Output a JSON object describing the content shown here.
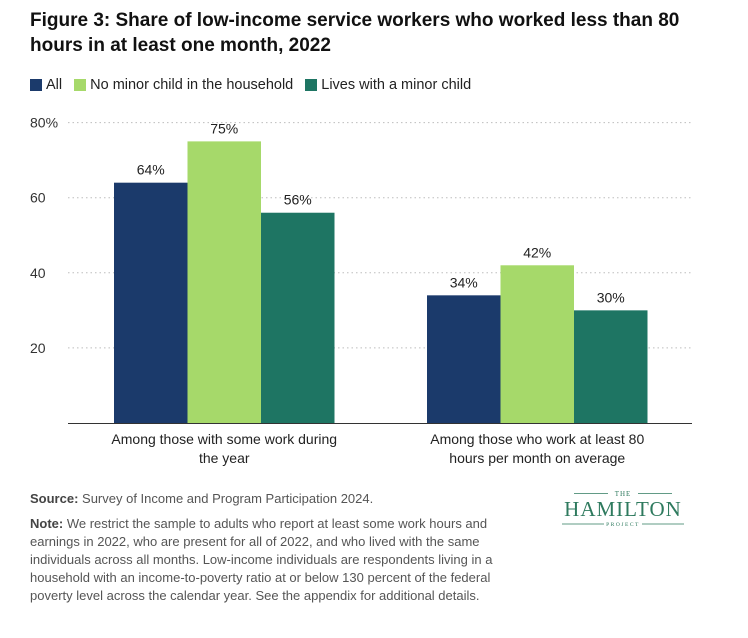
{
  "title": "Figure 3: Share of low-income service workers who worked less than 80 hours in at least one month, 2022",
  "legend": [
    {
      "label": "All",
      "color": "#1b3a6b"
    },
    {
      "label": "No minor child in the household",
      "color": "#a6d96a"
    },
    {
      "label": "Lives with a minor child",
      "color": "#1e7563"
    }
  ],
  "chart_data": {
    "type": "bar",
    "categories": [
      "Among those with some work during the year",
      "Among those who work at least 80 hours per month on average"
    ],
    "series": [
      {
        "name": "All",
        "values": [
          64,
          34
        ],
        "color": "#1b3a6b"
      },
      {
        "name": "No minor child in the household",
        "values": [
          75,
          42
        ],
        "color": "#a6d96a"
      },
      {
        "name": "Lives with a minor child",
        "values": [
          56,
          30
        ],
        "color": "#1e7563"
      }
    ],
    "data_labels": [
      [
        "64%",
        "34%"
      ],
      [
        "75%",
        "42%"
      ],
      [
        "56%",
        "30%"
      ]
    ],
    "y_ticks": [
      {
        "value": 20,
        "label": "20"
      },
      {
        "value": 40,
        "label": "40"
      },
      {
        "value": 60,
        "label": "60"
      },
      {
        "value": 80,
        "label": "80%"
      }
    ],
    "category_labels": [
      [
        "Among those with some work during",
        "the year"
      ],
      [
        "Among those who work at least 80",
        "hours per month on average"
      ]
    ],
    "ylim": [
      0,
      80
    ],
    "grid": "dotted horizontal",
    "legend_position": "top-left"
  },
  "footer": {
    "source_label": "Source:",
    "source_text": " Survey of Income and Program Participation 2024.",
    "note_label": "Note:",
    "note_text": " We restrict the sample to adults who report at least some work hours and earnings in 2022, who are present for all of 2022, and who lived with the same individuals across all months. Low-income individuals are respondents living in a household with an income-to-poverty ratio at or below 130 percent of the federal poverty level across the calendar year. See the appendix for additional details."
  },
  "logo": {
    "top": "THE",
    "main": "HAMILTON",
    "bottom": "PROJECT",
    "color": "#2e7a5e"
  }
}
